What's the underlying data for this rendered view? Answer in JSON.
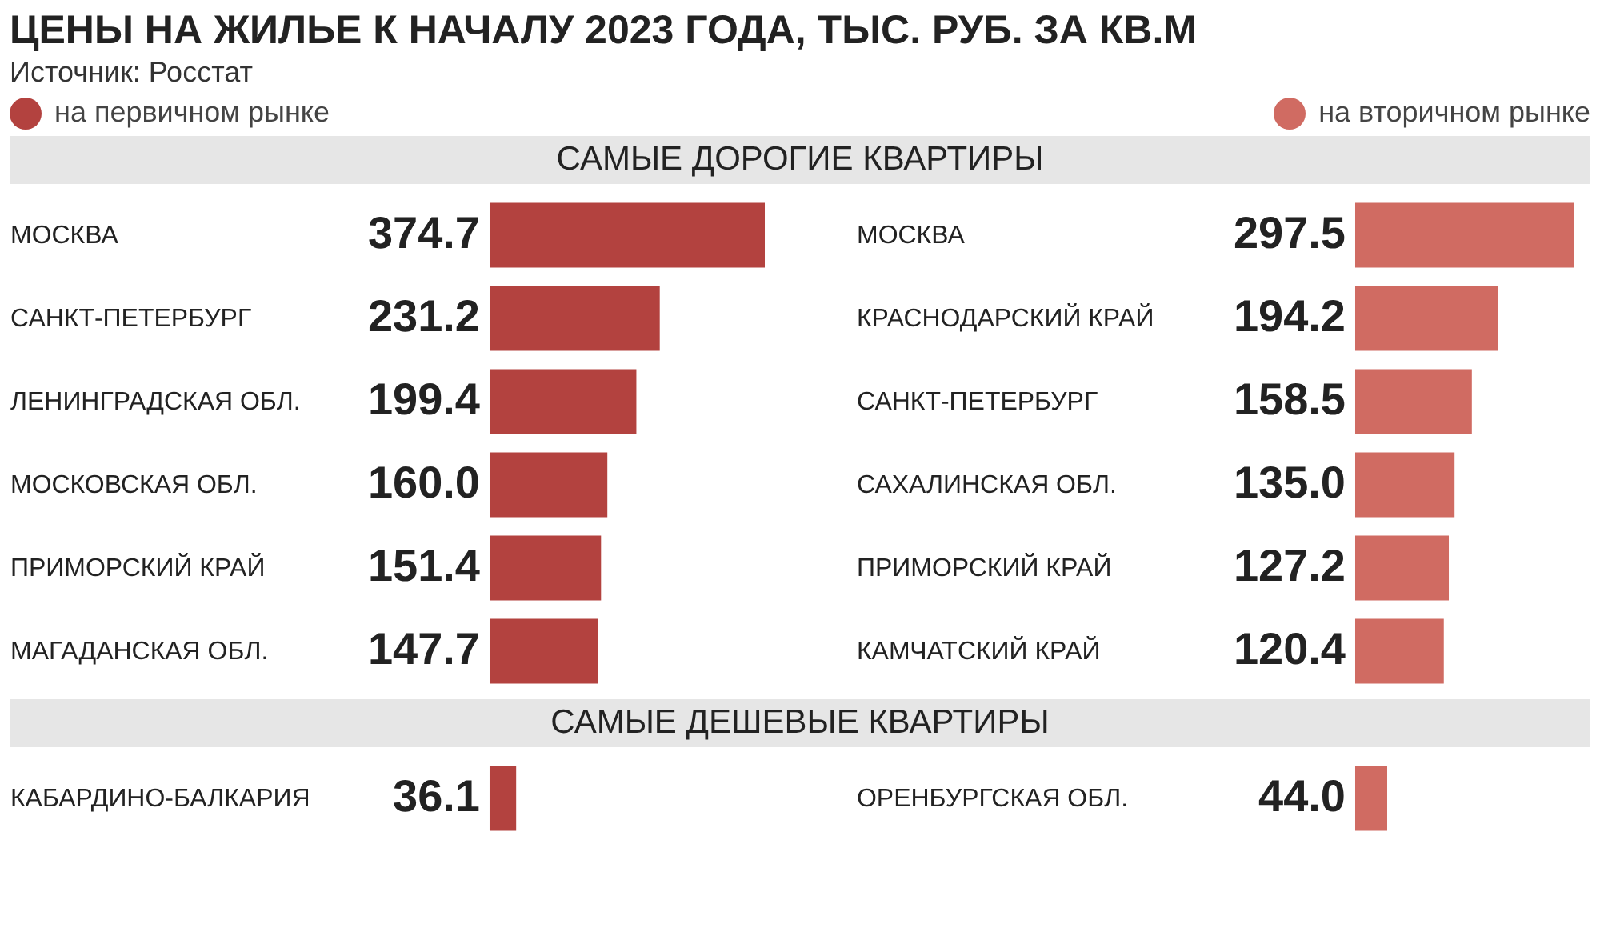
{
  "chart_data": [
    {
      "type": "bar",
      "orientation": "horizontal",
      "title": "ЦЕНЫ НА ЖИЛЬЕ К НАЧАЛУ 2023 ГОДА, ТЫС. РУБ. ЗА КВ.М",
      "subtitle": "Источник: Росстат",
      "annotations": [
        "САМЫЕ ДОРОГИЕ КВАРТИРЫ"
      ],
      "legend": "top left",
      "categories": [
        "МОСКВА",
        "САНКТ-ПЕТЕРБУРГ",
        "ЛЕНИНГРАДСКАЯ ОБЛ.",
        "МОСКОВСКАЯ ОБЛ.",
        "ПРИМОРСКИЙ КРАЙ",
        "МАГАДАНСКАЯ ОБЛ."
      ],
      "series": [
        {
          "name": "на первичном рынке",
          "color": "#b3423f",
          "values": [
            374.7,
            231.2,
            199.4,
            160.0,
            151.4,
            147.7
          ],
          "value_labels": [
            "374.7",
            "231.2",
            "199.4",
            "160.0",
            "151.4",
            "147.7"
          ]
        }
      ]
    },
    {
      "type": "bar",
      "orientation": "horizontal",
      "legend": "top",
      "categories": [
        "МОСКВА",
        "КРАСНОДАРСКИЙ КРАЙ",
        "САНКТ-ПЕТЕРБУРГ",
        "САХАЛИНСКАЯ ОБЛ.",
        "ПРИМОРСКИЙ КРАЙ",
        "КАМЧАТСКИЙ КРАЙ"
      ],
      "series": [
        {
          "name": "на вторичном рынке",
          "color": "#d06b62",
          "values": [
            297.5,
            194.2,
            158.5,
            135.0,
            127.2,
            120.4
          ],
          "value_labels": [
            "297.5",
            "194.2",
            "158.5",
            "135.0",
            "127.2",
            "120.4"
          ]
        }
      ]
    },
    {
      "type": "bar",
      "orientation": "horizontal",
      "annotations": [
        "САМЫЕ ДЕШЕВЫЕ КВАРТИРЫ"
      ],
      "categories": [
        "КАБАРДИНО-БАЛКАРИЯ"
      ],
      "series": [
        {
          "color": "#b3423f",
          "values": [
            36.1
          ],
          "value_labels": [
            "36.1"
          ]
        }
      ]
    },
    {
      "type": "bar",
      "orientation": "horizontal",
      "categories": [
        "ОРЕНБУРГСКАЯ ОБЛ."
      ],
      "series": [
        {
          "color": "#d06b62",
          "values": [
            44.0
          ],
          "value_labels": [
            "44.0"
          ]
        }
      ]
    }
  ]
}
